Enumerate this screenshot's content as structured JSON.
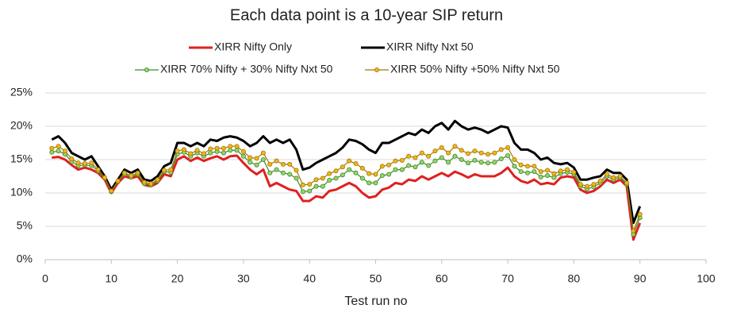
{
  "chart_data": {
    "type": "line",
    "title": "Each data point is a 10-year SIP return",
    "x_label": "Test run no",
    "legend": "top",
    "grid": true,
    "x": [
      1,
      2,
      3,
      4,
      5,
      6,
      7,
      8,
      9,
      10,
      11,
      12,
      13,
      14,
      15,
      16,
      17,
      18,
      19,
      20,
      21,
      22,
      23,
      24,
      25,
      26,
      27,
      28,
      29,
      30,
      31,
      32,
      33,
      34,
      35,
      36,
      37,
      38,
      39,
      40,
      41,
      42,
      43,
      44,
      45,
      46,
      47,
      48,
      49,
      50,
      51,
      52,
      53,
      54,
      55,
      56,
      57,
      58,
      59,
      60,
      61,
      62,
      63,
      64,
      65,
      66,
      67,
      68,
      69,
      70,
      71,
      72,
      73,
      74,
      75,
      76,
      77,
      78,
      79,
      80,
      81,
      82,
      83,
      84,
      85,
      86,
      87,
      88,
      89,
      90
    ],
    "xlim": [
      0,
      100
    ],
    "xticks": [
      0,
      10,
      20,
      30,
      40,
      50,
      60,
      70,
      80,
      90,
      100
    ],
    "ylim": [
      0,
      25
    ],
    "yticks": [
      {
        "value": 0,
        "label": "0%"
      },
      {
        "value": 5,
        "label": "5%"
      },
      {
        "value": 10,
        "label": "10%"
      },
      {
        "value": 15,
        "label": "15%"
      },
      {
        "value": 20,
        "label": "20%"
      },
      {
        "value": 25,
        "label": "25%"
      }
    ],
    "series": [
      {
        "name": "XIRR Nifty Only",
        "color": "#e02020",
        "markers": false,
        "values": [
          15.3,
          15.4,
          15.0,
          14.2,
          13.5,
          13.8,
          13.5,
          13.0,
          12.0,
          10.0,
          11.5,
          12.5,
          12.2,
          12.5,
          11.2,
          11.0,
          11.5,
          12.8,
          12.5,
          15.0,
          15.5,
          14.8,
          15.3,
          14.8,
          15.2,
          15.5,
          15.0,
          15.5,
          15.6,
          14.5,
          13.5,
          12.8,
          13.5,
          11.0,
          11.5,
          11.0,
          10.5,
          10.3,
          8.8,
          8.8,
          9.5,
          9.3,
          10.3,
          10.5,
          11.0,
          11.5,
          11.0,
          10.0,
          9.3,
          9.5,
          10.5,
          10.8,
          11.5,
          11.3,
          12.0,
          11.8,
          12.5,
          12.0,
          12.5,
          13.0,
          12.5,
          13.2,
          12.8,
          12.3,
          12.8,
          12.5,
          12.5,
          12.5,
          13.0,
          13.8,
          12.5,
          11.8,
          11.5,
          12.0,
          11.3,
          11.5,
          11.3,
          12.3,
          12.5,
          12.3,
          10.5,
          10.0,
          10.3,
          11.0,
          12.0,
          11.5,
          12.0,
          11.0,
          3.0,
          5.5
        ]
      },
      {
        "name": "XIRR Nifty Nxt 50",
        "color": "#000000",
        "markers": false,
        "values": [
          18.0,
          18.5,
          17.5,
          16.0,
          15.5,
          15.0,
          15.5,
          14.0,
          12.5,
          10.5,
          12.0,
          13.5,
          13.0,
          13.5,
          12.0,
          11.8,
          12.5,
          14.0,
          14.5,
          17.5,
          17.5,
          17.0,
          17.5,
          17.0,
          18.0,
          17.8,
          18.3,
          18.5,
          18.3,
          17.8,
          17.0,
          17.5,
          18.5,
          17.5,
          18.0,
          17.5,
          18.0,
          16.5,
          13.5,
          13.8,
          14.5,
          15.0,
          15.5,
          16.0,
          16.8,
          18.0,
          17.8,
          17.3,
          16.5,
          16.0,
          17.5,
          17.5,
          18.0,
          18.5,
          19.0,
          18.7,
          19.5,
          19.0,
          20.0,
          20.5,
          19.5,
          20.8,
          20.0,
          19.5,
          19.8,
          19.5,
          19.0,
          19.5,
          20.0,
          19.8,
          17.5,
          16.5,
          16.5,
          16.0,
          15.0,
          15.3,
          14.5,
          14.3,
          14.5,
          13.8,
          12.0,
          12.0,
          12.3,
          12.5,
          13.5,
          13.0,
          13.0,
          12.0,
          5.5,
          8.0
        ]
      },
      {
        "name": "XIRR 70% Nifty + 30% Nifty Nxt 50",
        "color": "#3a8a2a",
        "marker_color": "#9bd36a",
        "markers": true,
        "values": [
          16.1,
          16.3,
          15.8,
          14.7,
          14.1,
          14.2,
          14.1,
          13.3,
          12.2,
          10.2,
          11.7,
          12.8,
          12.4,
          12.8,
          11.4,
          11.2,
          11.8,
          13.2,
          13.1,
          15.8,
          16.1,
          15.5,
          16.0,
          15.5,
          16.0,
          16.2,
          16.0,
          16.4,
          16.4,
          15.5,
          14.6,
          14.2,
          15.0,
          13.0,
          13.5,
          13.0,
          12.8,
          12.2,
          10.2,
          10.3,
          11.0,
          11.0,
          11.9,
          12.2,
          12.7,
          13.5,
          13.0,
          12.2,
          11.5,
          11.5,
          12.6,
          12.8,
          13.5,
          13.5,
          14.1,
          13.9,
          14.6,
          14.1,
          14.8,
          15.3,
          14.6,
          15.5,
          15.0,
          14.5,
          14.9,
          14.6,
          14.5,
          14.6,
          15.1,
          15.6,
          14.0,
          13.2,
          13.0,
          13.2,
          12.4,
          12.6,
          12.3,
          12.9,
          13.1,
          12.8,
          11.0,
          10.6,
          10.9,
          11.5,
          12.5,
          12.0,
          12.3,
          11.3,
          3.8,
          6.3
        ]
      },
      {
        "name": "XIRR 50% Nifty +50% Nifty Nxt 50",
        "color": "#a07800",
        "marker_color": "#f2b51c",
        "markers": true,
        "values": [
          16.7,
          17.0,
          16.3,
          15.1,
          14.5,
          14.4,
          14.5,
          13.5,
          12.3,
          10.3,
          11.8,
          13.0,
          12.6,
          13.0,
          11.6,
          11.4,
          12.0,
          13.4,
          13.5,
          16.3,
          16.5,
          15.9,
          16.4,
          15.9,
          16.6,
          16.7,
          16.7,
          17.0,
          17.0,
          16.2,
          15.3,
          15.2,
          16.0,
          14.3,
          14.8,
          14.3,
          14.3,
          13.4,
          11.2,
          11.3,
          12.0,
          12.2,
          12.9,
          13.3,
          13.9,
          14.8,
          14.4,
          13.7,
          12.9,
          12.8,
          14.0,
          14.2,
          14.8,
          14.9,
          15.5,
          15.3,
          16.0,
          15.5,
          16.3,
          16.8,
          16.0,
          17.0,
          16.4,
          15.9,
          16.3,
          16.0,
          15.8,
          16.0,
          16.5,
          16.8,
          15.0,
          14.2,
          14.0,
          14.0,
          13.2,
          13.4,
          12.9,
          13.3,
          13.5,
          13.1,
          11.3,
          11.0,
          11.3,
          11.8,
          12.8,
          12.3,
          12.5,
          11.5,
          4.3,
          6.8
        ]
      }
    ]
  }
}
